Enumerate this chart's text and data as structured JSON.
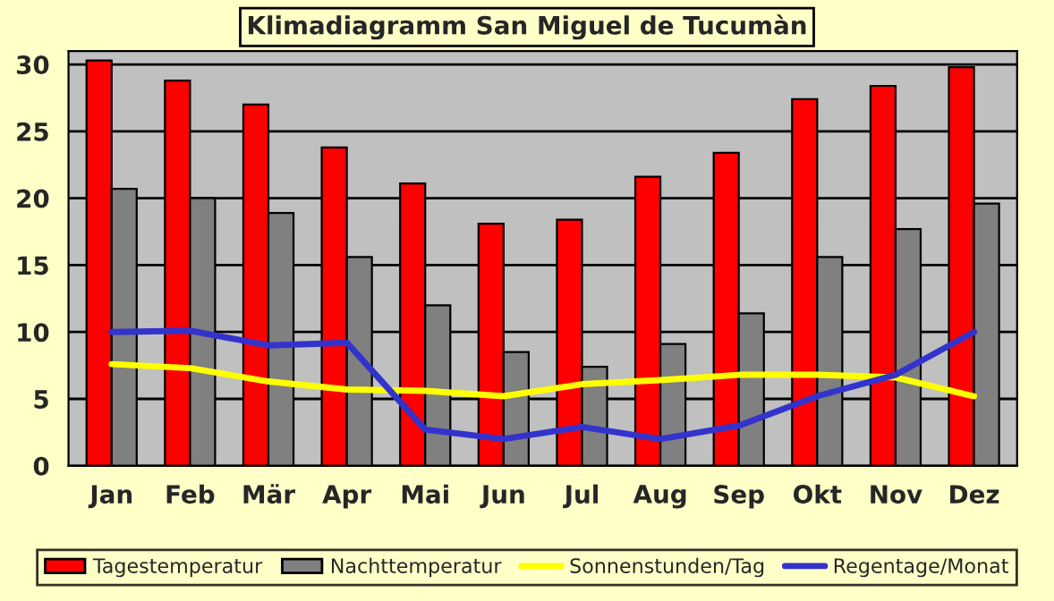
{
  "chart_data": {
    "type": "bar",
    "title": "Klimadiagramm San Miguel de Tucumàn",
    "categories": [
      "Jan",
      "Feb",
      "Mär",
      "Apr",
      "Mai",
      "Jun",
      "Jul",
      "Aug",
      "Sep",
      "Okt",
      "Nov",
      "Dez"
    ],
    "series": [
      {
        "name": "Tagestemperatur",
        "color": "#ff0000",
        "values": [
          30.3,
          28.8,
          27.0,
          23.8,
          21.1,
          18.1,
          18.4,
          21.6,
          23.4,
          27.4,
          28.4,
          29.8
        ]
      },
      {
        "name": "Nachttemperatur",
        "color": "#808080",
        "values": [
          20.7,
          20.0,
          18.9,
          15.6,
          12.0,
          8.5,
          7.4,
          9.1,
          11.4,
          15.6,
          17.7,
          19.6
        ]
      },
      {
        "name": "Sonnenstunden/Tag",
        "type": "line",
        "color": "#ffff00",
        "values": [
          7.6,
          7.3,
          6.3,
          5.7,
          5.6,
          5.2,
          6.1,
          6.4,
          6.8,
          6.8,
          6.6,
          5.2
        ]
      },
      {
        "name": "Regentage/Monat",
        "type": "line",
        "color": "#3333cc",
        "values": [
          10.0,
          10.1,
          9.0,
          9.2,
          2.7,
          2.0,
          2.9,
          2.0,
          3.0,
          5.2,
          6.8,
          10.0
        ]
      }
    ],
    "ylim": [
      0,
      31
    ],
    "yticks": [
      0,
      5,
      10,
      15,
      20,
      25,
      30
    ],
    "grid": "y",
    "legend": "bottom",
    "marker": "none",
    "line_style": "solid"
  }
}
